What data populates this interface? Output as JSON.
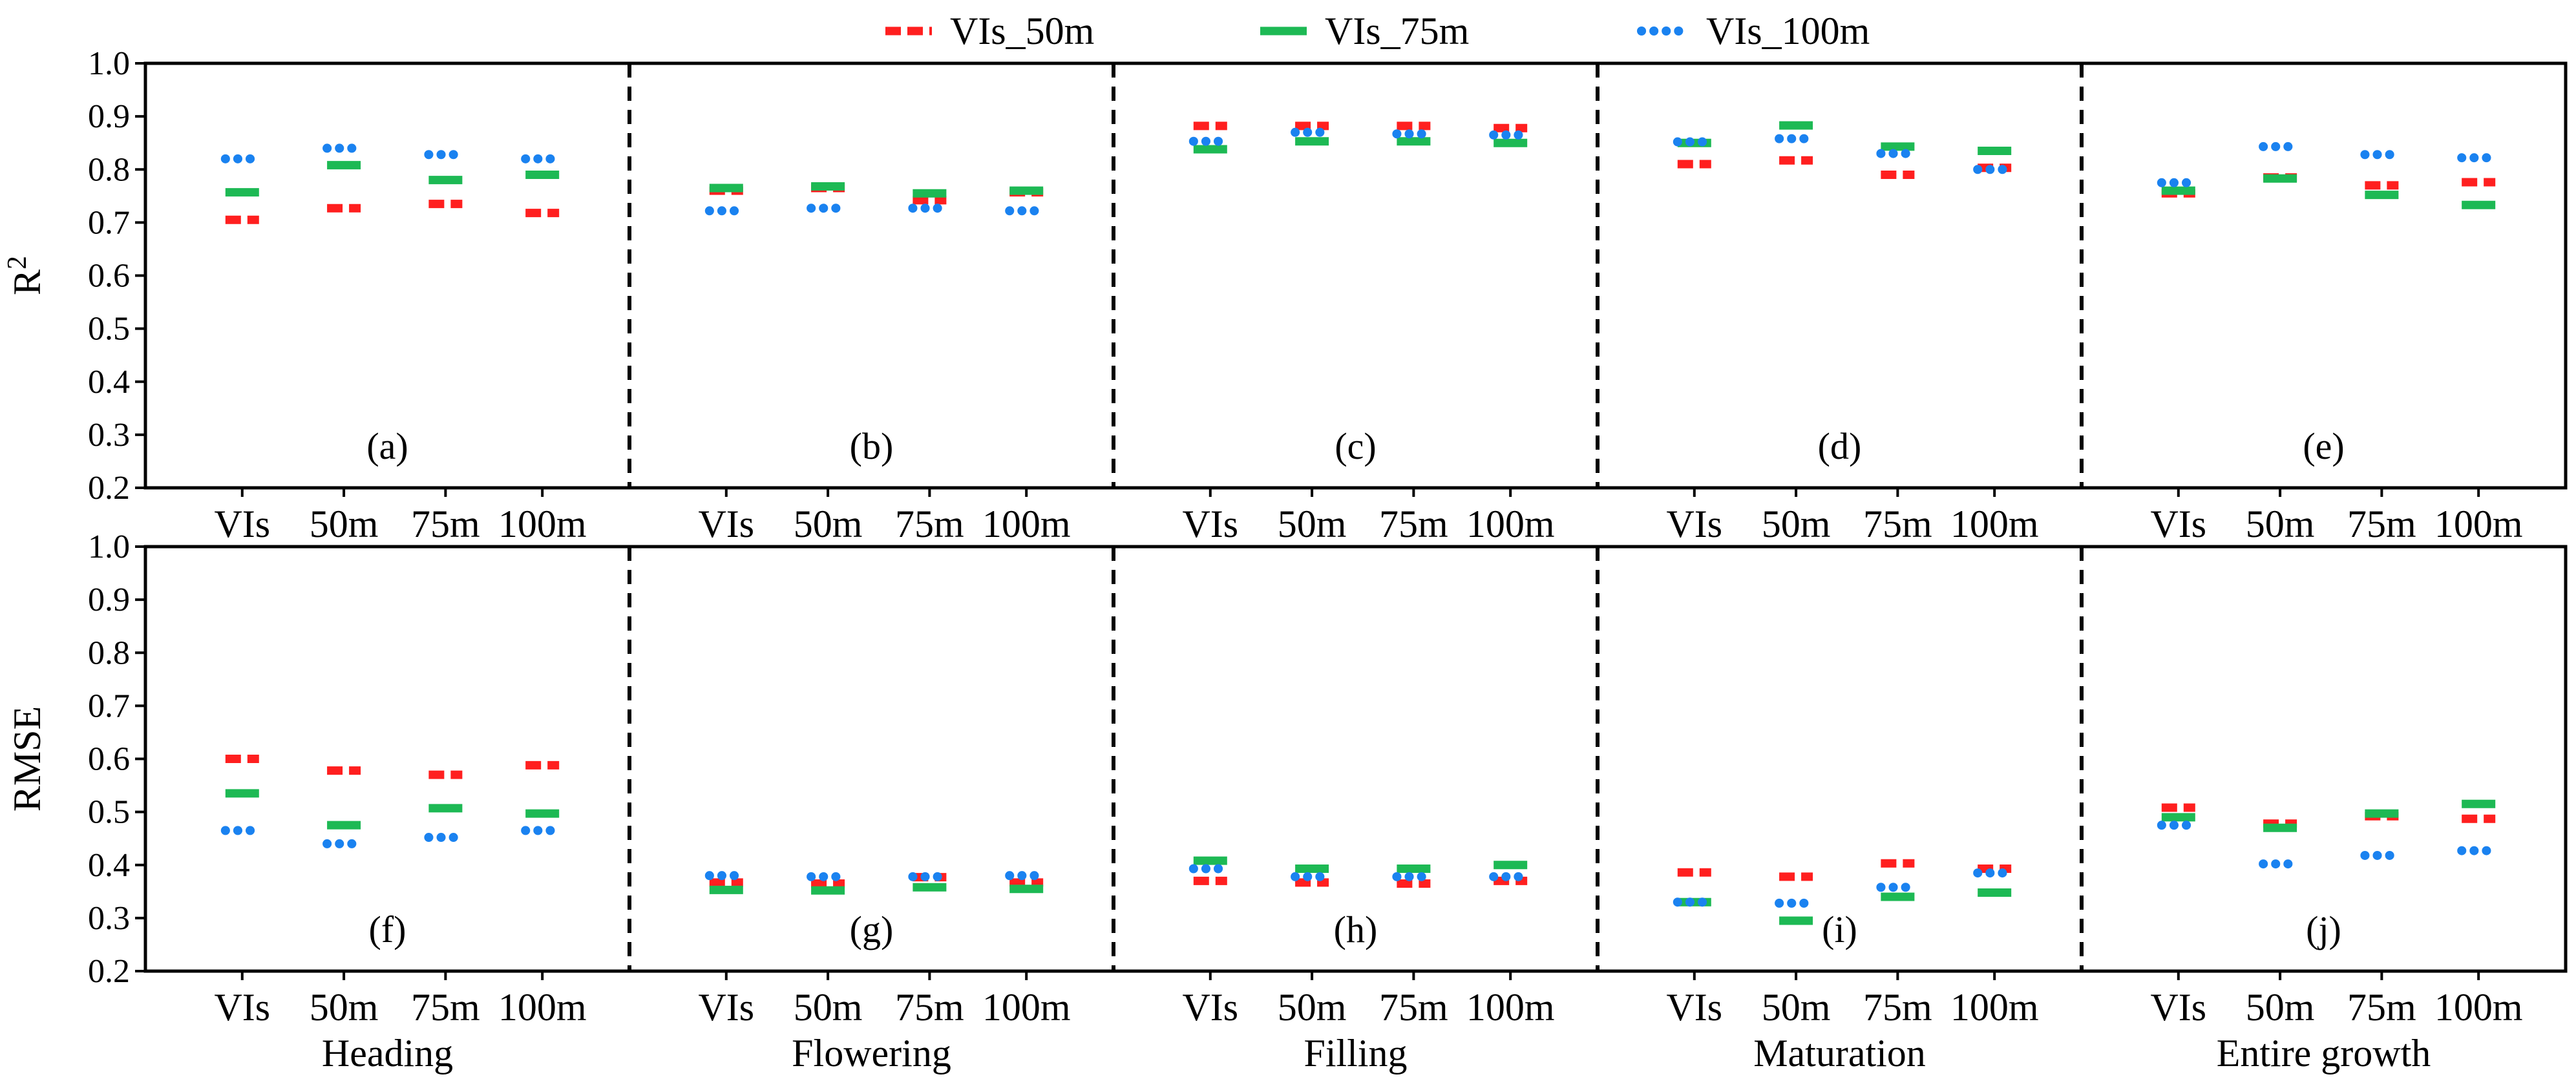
{
  "chart_data": {
    "type": "dot-strip",
    "legend": [
      {
        "name": "VIs_50m",
        "color": "#ff1f1f",
        "style": "dashed"
      },
      {
        "name": "VIs_75m",
        "color": "#1db954",
        "style": "solid"
      },
      {
        "name": "VIs_100m",
        "color": "#1a82f0",
        "style": "dotted"
      }
    ],
    "stages": [
      "Heading",
      "Flowering",
      "Filling",
      "Maturation",
      "Entire growth"
    ],
    "categories": [
      "VIs",
      "50m",
      "75m",
      "100m"
    ],
    "yticks": [
      "0.2",
      "0.3",
      "0.4",
      "0.5",
      "0.6",
      "0.7",
      "0.8",
      "0.9",
      "1.0"
    ],
    "rows": [
      {
        "ylabel": "R",
        "ylabel_sup": "2",
        "ylim": [
          0.2,
          1.0
        ],
        "panel_labels": [
          "(a)",
          "(b)",
          "(c)",
          "(d)",
          "(e)"
        ],
        "series": [
          {
            "name": "VIs_50m",
            "values": [
              [
                0.705,
                0.727,
                0.735,
                0.718
              ],
              [
                0.76,
                0.765,
                0.742,
                0.757
              ],
              [
                0.882,
                0.882,
                0.882,
                0.878
              ],
              [
                0.81,
                0.817,
                0.79,
                0.803
              ],
              [
                0.755,
                0.785,
                0.77,
                0.776
              ]
            ]
          },
          {
            "name": "VIs_75m",
            "values": [
              [
                0.757,
                0.808,
                0.78,
                0.79
              ],
              [
                0.765,
                0.768,
                0.755,
                0.76
              ],
              [
                0.838,
                0.853,
                0.853,
                0.85
              ],
              [
                0.85,
                0.883,
                0.843,
                0.835
              ],
              [
                0.76,
                0.783,
                0.752,
                0.733
              ]
            ]
          },
          {
            "name": "VIs_100m",
            "values": [
              [
                0.82,
                0.84,
                0.828,
                0.82
              ],
              [
                0.722,
                0.727,
                0.727,
                0.722
              ],
              [
                0.853,
                0.87,
                0.867,
                0.865
              ],
              [
                0.852,
                0.858,
                0.83,
                0.8
              ],
              [
                0.775,
                0.843,
                0.828,
                0.822
              ]
            ]
          }
        ]
      },
      {
        "ylabel": "RMSE",
        "ylabel_sup": "",
        "ylim": [
          0.2,
          1.0
        ],
        "panel_labels": [
          "(f)",
          "(g)",
          "(h)",
          "(i)",
          "(j)"
        ],
        "series": [
          {
            "name": "VIs_50m",
            "values": [
              [
                0.6,
                0.578,
                0.57,
                0.588
              ],
              [
                0.367,
                0.365,
                0.377,
                0.367
              ],
              [
                0.37,
                0.367,
                0.365,
                0.37
              ],
              [
                0.386,
                0.378,
                0.403,
                0.393
              ],
              [
                0.508,
                0.478,
                0.492,
                0.487
              ]
            ]
          },
          {
            "name": "VIs_75m",
            "values": [
              [
                0.535,
                0.475,
                0.507,
                0.497
              ],
              [
                0.353,
                0.352,
                0.358,
                0.355
              ],
              [
                0.408,
                0.393,
                0.393,
                0.4
              ],
              [
                0.33,
                0.295,
                0.34,
                0.348
              ],
              [
                0.49,
                0.47,
                0.497,
                0.515
              ]
            ]
          },
          {
            "name": "VIs_100m",
            "values": [
              [
                0.465,
                0.44,
                0.452,
                0.465
              ],
              [
                0.38,
                0.378,
                0.378,
                0.38
              ],
              [
                0.393,
                0.378,
                0.378,
                0.378
              ],
              [
                0.33,
                0.328,
                0.358,
                0.385
              ],
              [
                0.475,
                0.402,
                0.418,
                0.427
              ]
            ]
          }
        ]
      }
    ]
  }
}
